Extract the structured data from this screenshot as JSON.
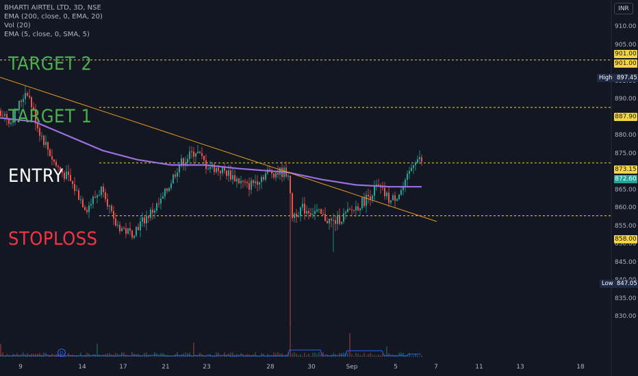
{
  "legend": {
    "symbol": "BHARTI AIRTEL LTD, 3D, NSE",
    "ema200": "EMA (200, close, 0, EMA, 20)",
    "vol": "Vol (20)",
    "ema5": "EMA (5, close, 0, SMA, 5)"
  },
  "currency_button": "INR",
  "annotations": {
    "target2": "TARGET 2",
    "target1": "TARGET 1",
    "entry": "ENTRY",
    "stoploss": "STOPLOSS"
  },
  "colors": {
    "target": "#4caf50",
    "entry": "#ffffff",
    "stoploss": "#f23645",
    "bull": "#26a69a",
    "bear": "#ef5350",
    "ema": "#9c6fe4",
    "trendline": "#e69b23",
    "level_line": "#f7d33f"
  },
  "price_axis": {
    "ticks": [
      "910.00",
      "905.00",
      "900.00",
      "895.00",
      "890.00",
      "885.00",
      "880.00",
      "875.00",
      "870.00",
      "865.00",
      "860.00",
      "855.00",
      "850.00",
      "845.00",
      "840.00",
      "835.00",
      "830.00"
    ]
  },
  "price_tags": {
    "t2_a": "901.00",
    "t2_b": "901.00",
    "high_label": "High",
    "high_value": "897.45",
    "t1": "887.90",
    "last": "873.15",
    "entry": "872.60",
    "stop": "858.00",
    "low_label": "Low",
    "low_value": "847.05"
  },
  "time_axis": {
    "ticks": [
      "9",
      "14",
      "17",
      "21",
      "23",
      "28",
      "30",
      "Sep",
      "5",
      "7",
      "11",
      "13",
      "18"
    ]
  },
  "levels": [
    901.0,
    887.9,
    872.6,
    858.0
  ],
  "chart_data": {
    "type": "candlestick",
    "y_range": [
      828,
      912
    ],
    "high": 897.45,
    "low": 847.05,
    "last": 873.15,
    "ema200_approx": [
      885,
      884,
      880,
      876,
      873.5,
      872,
      872,
      871,
      870,
      868,
      866.5,
      866,
      866
    ]
  },
  "volume_badge": "D"
}
